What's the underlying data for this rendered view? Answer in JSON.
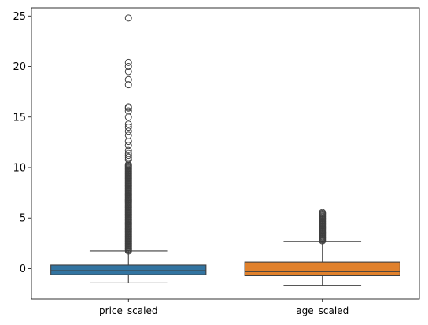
{
  "chart_data": {
    "type": "box",
    "title": "",
    "xlabel": "",
    "ylabel": "",
    "ylim": [
      -3.0,
      25.8
    ],
    "yticks": [
      0,
      5,
      10,
      15,
      20,
      25
    ],
    "grid": false,
    "legend": "none",
    "categories": [
      "price_scaled",
      "age_scaled"
    ],
    "boxes": [
      {
        "category": "price_scaled",
        "color": "#3274a1",
        "whisker_low": -1.4,
        "q1": -0.6,
        "median": -0.2,
        "q3": 0.35,
        "whisker_high": 1.75,
        "outlier_range": [
          1.75,
          10.3
        ],
        "outliers": [
          10.8,
          11.0,
          11.2,
          11.4,
          11.7,
          12.2,
          12.6,
          13.2,
          13.6,
          14.0,
          14.3,
          15.0,
          15.6,
          15.9,
          16.0,
          18.2,
          18.7,
          19.5,
          20.0,
          20.4,
          24.8
        ]
      },
      {
        "category": "age_scaled",
        "color": "#e1812c",
        "whisker_low": -1.65,
        "q1": -0.7,
        "median": -0.3,
        "q3": 0.65,
        "whisker_high": 2.7,
        "outlier_range": [
          2.75,
          5.55
        ],
        "outliers": []
      }
    ]
  }
}
